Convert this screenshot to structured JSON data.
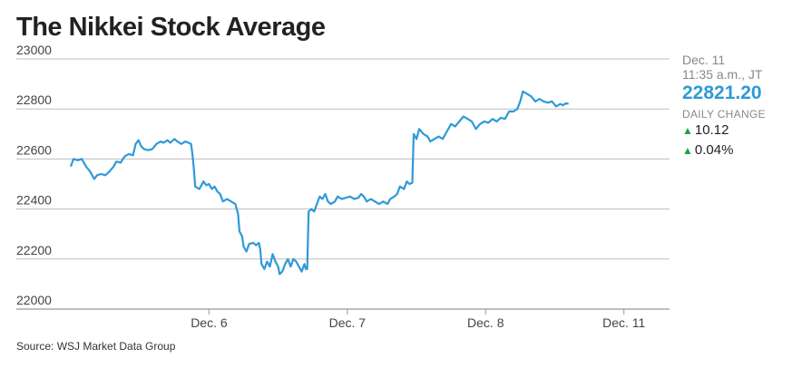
{
  "title": "The Nikkei Stock Average",
  "source": "Source: WSJ Market Data Group",
  "panel": {
    "date_line1": "Dec. 11",
    "date_line2": "11:35 a.m., JT",
    "price": "22821.20",
    "daily_change_label": "DAILY CHANGE",
    "change_points": "10.12",
    "change_percent": "0.04%"
  },
  "colors": {
    "line": "#2e9ad6",
    "up": "#1aa34a",
    "grid": "#bdbdbd"
  },
  "chart_data": {
    "type": "line",
    "title": "The Nikkei Stock Average",
    "xlabel": "",
    "ylabel": "",
    "ylim": [
      22000,
      23000
    ],
    "yticks": [
      22000,
      22200,
      22400,
      22600,
      22800,
      23000
    ],
    "xlim": [
      0,
      4.33
    ],
    "xticks": [
      {
        "label": "Dec. 6",
        "x": 1
      },
      {
        "label": "Dec. 7",
        "x": 2
      },
      {
        "label": "Dec. 8",
        "x": 3
      },
      {
        "label": "Dec. 11",
        "x": 4
      }
    ],
    "grid": "horizontal",
    "series": [
      {
        "points": [
          [
            0.0,
            22570
          ],
          [
            0.02,
            22600
          ],
          [
            0.05,
            22595
          ],
          [
            0.08,
            22600
          ],
          [
            0.11,
            22570
          ],
          [
            0.14,
            22550
          ],
          [
            0.17,
            22520
          ],
          [
            0.19,
            22535
          ],
          [
            0.22,
            22540
          ],
          [
            0.25,
            22535
          ],
          [
            0.28,
            22550
          ],
          [
            0.31,
            22570
          ],
          [
            0.33,
            22590
          ],
          [
            0.36,
            22585
          ],
          [
            0.39,
            22610
          ],
          [
            0.42,
            22620
          ],
          [
            0.45,
            22615
          ],
          [
            0.47,
            22660
          ],
          [
            0.49,
            22675
          ],
          [
            0.51,
            22650
          ],
          [
            0.53,
            22640
          ],
          [
            0.56,
            22635
          ],
          [
            0.59,
            22640
          ],
          [
            0.62,
            22660
          ],
          [
            0.65,
            22670
          ],
          [
            0.67,
            22665
          ],
          [
            0.7,
            22675
          ],
          [
            0.72,
            22665
          ],
          [
            0.75,
            22680
          ],
          [
            0.77,
            22670
          ],
          [
            0.8,
            22660
          ],
          [
            0.83,
            22670
          ],
          [
            0.87,
            22660
          ],
          [
            0.88,
            22620
          ],
          [
            0.89,
            22560
          ],
          [
            0.9,
            22490
          ],
          [
            0.93,
            22480
          ],
          [
            0.96,
            22510
          ],
          [
            0.98,
            22495
          ],
          [
            1.0,
            22500
          ],
          [
            1.02,
            22480
          ],
          [
            1.04,
            22490
          ],
          [
            1.06,
            22470
          ],
          [
            1.08,
            22460
          ],
          [
            1.1,
            22430
          ],
          [
            1.13,
            22440
          ],
          [
            1.16,
            22430
          ],
          [
            1.19,
            22420
          ],
          [
            1.21,
            22380
          ],
          [
            1.22,
            22310
          ],
          [
            1.24,
            22290
          ],
          [
            1.25,
            22250
          ],
          [
            1.27,
            22230
          ],
          [
            1.29,
            22260
          ],
          [
            1.32,
            22265
          ],
          [
            1.34,
            22255
          ],
          [
            1.36,
            22265
          ],
          [
            1.37,
            22240
          ],
          [
            1.38,
            22180
          ],
          [
            1.4,
            22160
          ],
          [
            1.42,
            22190
          ],
          [
            1.44,
            22170
          ],
          [
            1.46,
            22220
          ],
          [
            1.48,
            22190
          ],
          [
            1.5,
            22170
          ],
          [
            1.51,
            22140
          ],
          [
            1.53,
            22150
          ],
          [
            1.55,
            22180
          ],
          [
            1.57,
            22200
          ],
          [
            1.59,
            22170
          ],
          [
            1.61,
            22200
          ],
          [
            1.63,
            22190
          ],
          [
            1.65,
            22170
          ],
          [
            1.67,
            22150
          ],
          [
            1.69,
            22180
          ],
          [
            1.7,
            22160
          ],
          [
            1.71,
            22160
          ],
          [
            1.72,
            22390
          ],
          [
            1.74,
            22400
          ],
          [
            1.76,
            22390
          ],
          [
            1.78,
            22420
          ],
          [
            1.8,
            22450
          ],
          [
            1.82,
            22440
          ],
          [
            1.84,
            22460
          ],
          [
            1.86,
            22430
          ],
          [
            1.88,
            22420
          ],
          [
            1.91,
            22430
          ],
          [
            1.93,
            22450
          ],
          [
            1.96,
            22440
          ],
          [
            1.99,
            22445
          ],
          [
            2.02,
            22450
          ],
          [
            2.05,
            22440
          ],
          [
            2.08,
            22445
          ],
          [
            2.1,
            22460
          ],
          [
            2.12,
            22450
          ],
          [
            2.14,
            22430
          ],
          [
            2.17,
            22440
          ],
          [
            2.2,
            22430
          ],
          [
            2.23,
            22420
          ],
          [
            2.26,
            22430
          ],
          [
            2.29,
            22420
          ],
          [
            2.31,
            22440
          ],
          [
            2.34,
            22450
          ],
          [
            2.36,
            22460
          ],
          [
            2.38,
            22490
          ],
          [
            2.41,
            22480
          ],
          [
            2.43,
            22510
          ],
          [
            2.45,
            22500
          ],
          [
            2.47,
            22505
          ],
          [
            2.48,
            22700
          ],
          [
            2.5,
            22680
          ],
          [
            2.52,
            22720
          ],
          [
            2.55,
            22700
          ],
          [
            2.58,
            22690
          ],
          [
            2.6,
            22670
          ],
          [
            2.63,
            22680
          ],
          [
            2.66,
            22690
          ],
          [
            2.69,
            22680
          ],
          [
            2.72,
            22710
          ],
          [
            2.75,
            22740
          ],
          [
            2.78,
            22730
          ],
          [
            2.81,
            22750
          ],
          [
            2.84,
            22770
          ],
          [
            2.87,
            22760
          ],
          [
            2.9,
            22750
          ],
          [
            2.93,
            22720
          ],
          [
            2.96,
            22740
          ],
          [
            2.99,
            22750
          ],
          [
            3.02,
            22745
          ],
          [
            3.05,
            22760
          ],
          [
            3.08,
            22750
          ],
          [
            3.11,
            22765
          ],
          [
            3.14,
            22760
          ],
          [
            3.17,
            22790
          ],
          [
            3.2,
            22790
          ],
          [
            3.23,
            22800
          ],
          [
            3.25,
            22830
          ],
          [
            3.27,
            22870
          ],
          [
            3.3,
            22860
          ],
          [
            3.33,
            22850
          ],
          [
            3.36,
            22830
          ],
          [
            3.39,
            22840
          ],
          [
            3.42,
            22830
          ],
          [
            3.45,
            22825
          ],
          [
            3.48,
            22830
          ],
          [
            3.51,
            22810
          ],
          [
            3.54,
            22820
          ],
          [
            3.56,
            22815
          ],
          [
            3.58,
            22822
          ],
          [
            3.6,
            22821
          ]
        ]
      }
    ]
  }
}
